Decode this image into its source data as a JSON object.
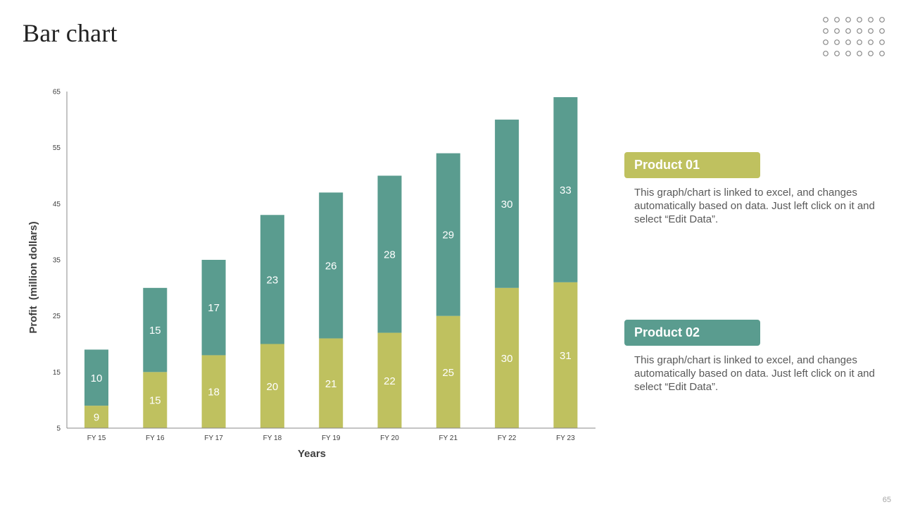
{
  "slide": {
    "title": "Bar chart",
    "page_number": "65"
  },
  "colors": {
    "product_01": "#BFC15F",
    "product_02": "#5A9C8F",
    "axis": "#888888",
    "tick_text": "#404040",
    "dot_outline": "#8a8a8a"
  },
  "legend": [
    {
      "label": "Product 01",
      "description": "This graph/chart is linked to excel, and changes automatically based on data. Just left click on it and select “Edit Data”."
    },
    {
      "label": "Product 02",
      "description": "This graph/chart is linked to excel, and changes automatically based on data. Just left click on it and select “Edit Data”."
    }
  ],
  "chart_data": {
    "type": "bar",
    "stacked": true,
    "title": "",
    "xlabel": "Years",
    "ylabel": "Profit  (million dollars)",
    "categories": [
      "FY 15",
      "FY 16",
      "FY 17",
      "FY 18",
      "FY 19",
      "FY 20",
      "FY 21",
      "FY 22",
      "FY 23"
    ],
    "series": [
      {
        "name": "Product 01",
        "values": [
          9,
          15,
          18,
          20,
          21,
          22,
          25,
          30,
          31
        ]
      },
      {
        "name": "Product 02",
        "values": [
          10,
          15,
          17,
          23,
          26,
          28,
          29,
          30,
          33
        ]
      }
    ],
    "ylim": [
      5,
      65
    ],
    "yticks": [
      5,
      15,
      25,
      35,
      45,
      55,
      65
    ],
    "grid": false,
    "legend_position": "right"
  }
}
